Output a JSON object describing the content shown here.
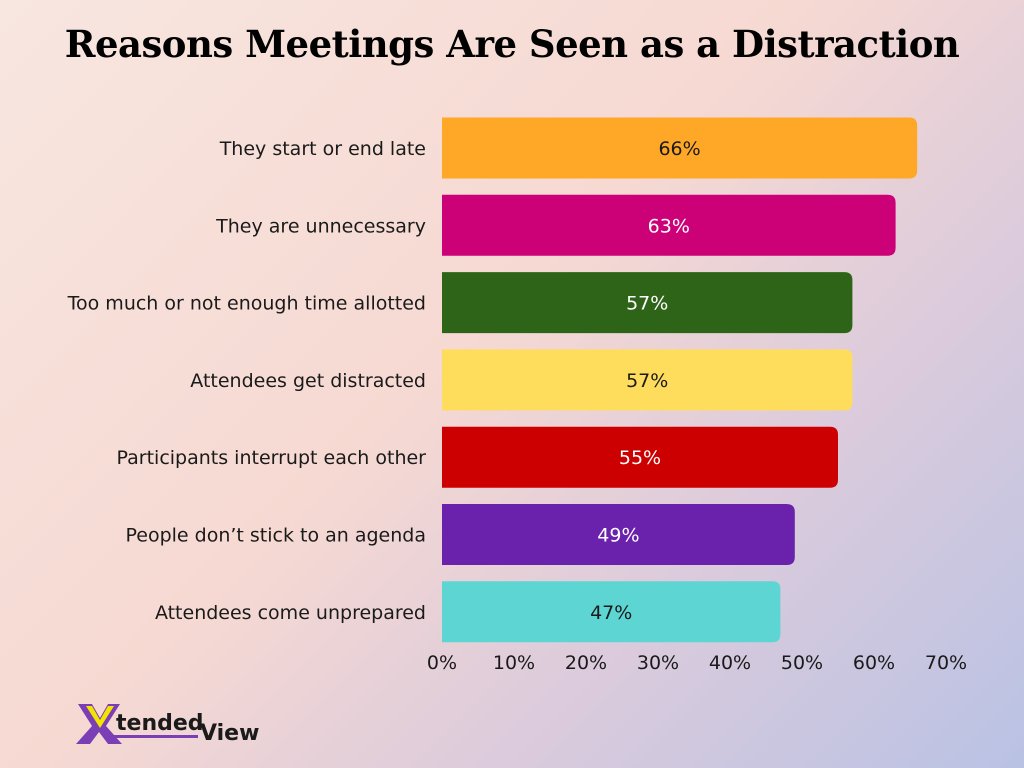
{
  "chart_data": {
    "type": "bar",
    "orientation": "horizontal",
    "title": "Reasons Meetings Are Seen as a Distraction",
    "categories": [
      "They start or end late",
      "They are unnecessary",
      "Too much or not enough time allotted",
      "Attendees get distracted",
      "Participants interrupt each other",
      "People don’t stick to an agenda",
      "Attendees come unprepared"
    ],
    "values": [
      66,
      63,
      57,
      57,
      55,
      49,
      47
    ],
    "data_labels": [
      "66%",
      "63%",
      "57%",
      "57%",
      "55%",
      "49%",
      "47%"
    ],
    "colors": [
      "#ffa726",
      "#cc0077",
      "#2e6418",
      "#ffdd5c",
      "#cc0000",
      "#6a22ad",
      "#5dd5d3"
    ],
    "label_colors": [
      "#1a1a1a",
      "#ffffff",
      "#ffffff",
      "#1a1a1a",
      "#ffffff",
      "#ffffff",
      "#1a1a1a"
    ],
    "xlim": [
      0,
      70
    ],
    "x_ticks": [
      "0%",
      "10%",
      "20%",
      "30%",
      "40%",
      "50%",
      "60%",
      "70%"
    ],
    "grid": false,
    "legend": "none"
  },
  "logo": {
    "text": "XtendedView",
    "colors": [
      "#7b3fb5",
      "#f2e600"
    ]
  }
}
